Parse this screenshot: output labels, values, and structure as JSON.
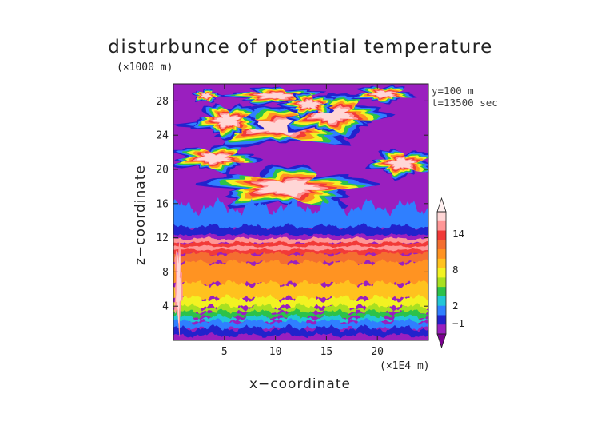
{
  "chart_data": {
    "type": "heatmap",
    "title": "disturbunce of potential temperature",
    "xlabel": "x−coordinate",
    "ylabel": "z−coordinate",
    "x_unit": "(×1E4 m)",
    "y_unit": "(×1000 m)",
    "annotations": [
      "y=100 m",
      "t=13500 sec"
    ],
    "xlim": [
      0,
      25
    ],
    "ylim": [
      0,
      30
    ],
    "x_ticks": [
      5,
      10,
      15,
      20
    ],
    "y_ticks": [
      4,
      8,
      12,
      16,
      20,
      24,
      28
    ],
    "colorbar": {
      "labels": [
        "−1",
        "2",
        "8",
        "14"
      ],
      "colors": [
        "#9a1fbf",
        "#2222cc",
        "#2f7fff",
        "#22c6d6",
        "#2cc24a",
        "#a8e020",
        "#f2f222",
        "#ffc21e",
        "#ff9322",
        "#f46e30",
        "#f23a38",
        "#ff9696",
        "#ffd6d6"
      ]
    },
    "layers": [
      {
        "z": [
          0.0,
          1.0
        ],
        "value": "−1 to 0 (violet/blue)"
      },
      {
        "z": [
          1.0,
          3.5
        ],
        "value": "0 to 2 (blue–green)"
      },
      {
        "z": [
          3.5,
          10.0
        ],
        "value": "2 to 10 (yellow–orange)"
      },
      {
        "z": [
          10.0,
          11.5
        ],
        "value": "10 to 12 (red)"
      },
      {
        "z": [
          11.5,
          13.0
        ],
        "value": "−1 to 0 (blue band)"
      },
      {
        "z": [
          13.0,
          30.0
        ],
        "value": "background below −1 with warm blobs near 16–20 and 22–28"
      }
    ]
  }
}
